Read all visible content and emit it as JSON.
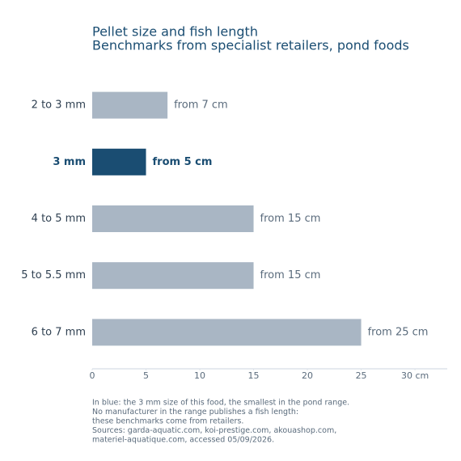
{
  "chart_data": {
    "type": "bar",
    "orientation": "horizontal",
    "title": "Pellet size and fish length",
    "subtitle": "Benchmarks from specialist retailers, pond foods",
    "categories": [
      "2 to 3 mm",
      "3 mm",
      "4 to 5 mm",
      "5 to 5.5 mm",
      "6 to 7 mm"
    ],
    "values": [
      7,
      5,
      15,
      15,
      25
    ],
    "value_labels": [
      "from 7 cm",
      "from 5 cm",
      "from 15 cm",
      "from 15 cm",
      "from 25 cm"
    ],
    "colors": [
      "#a9b6c4",
      "#1a4d72",
      "#a9b6c4",
      "#a9b6c4",
      "#a9b6c4"
    ],
    "highlight": 1,
    "xlim": [
      0,
      33
    ],
    "xticks": [
      0,
      5,
      10,
      15,
      20,
      25,
      {
        "value": 30,
        "label": "30 cm"
      }
    ],
    "notes": [
      "In blue: the 3 mm size of this food, the smallest in the pond range.",
      "No manufacturer in the range publishes a fish length:",
      "these benchmarks come from retailers.",
      "Sources: garda-aquatic.com, koi-prestige.com, akouashop.com,",
      "materiel-aquatique.com, accessed 05/09/2026."
    ]
  }
}
